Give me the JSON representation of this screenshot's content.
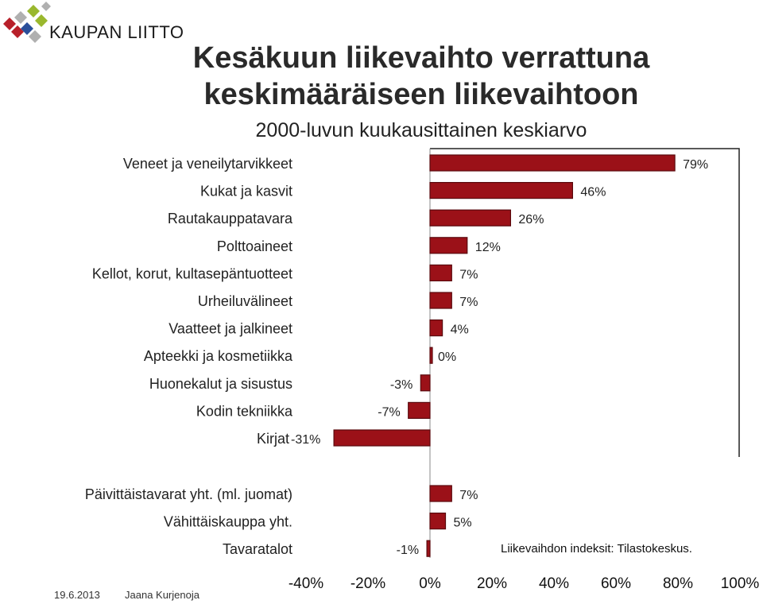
{
  "header": {
    "brand": "KAUPAN LIITTO",
    "title_line1": "Kesäkuun liikevaihto verrattuna",
    "title_line2": "keskimääräiseen liikevaihtoon",
    "subtitle": "2000-luvun kuukausittainen keskiarvo"
  },
  "footer": {
    "date": "19.6.2013",
    "author": "Jaana Kurjenoja",
    "source": "Liikevaihdon indeksit: Tilastokeskus."
  },
  "colors": {
    "bar_fill": "#9b1118",
    "bar_stroke": "#5a0a0e",
    "logo_red": "#b8202a",
    "logo_green": "#9ab82e",
    "logo_blue": "#2a4f9a",
    "logo_gray": "#b0b0b0"
  },
  "chart_data": {
    "type": "bar",
    "orientation": "horizontal",
    "grid": false,
    "xlim": [
      -40,
      100
    ],
    "x_ticks": [
      "-40%",
      "-20%",
      "0%",
      "20%",
      "40%",
      "60%",
      "80%",
      "100%"
    ],
    "groups": [
      {
        "categories": [
          "Veneet ja veneilytarvikkeet",
          "Kukat ja kasvit",
          "Rautakauppatavara",
          "Polttoaineet",
          "Kellot, korut, kultasepäntuotteet",
          "Urheiluvälineet",
          "Vaatteet ja jalkineet",
          "Apteekki ja kosmetiikka",
          "Huonekalut ja sisustus",
          "Kodin tekniikka",
          "Kirjat"
        ],
        "values": [
          79,
          46,
          26,
          12,
          7,
          7,
          4,
          0,
          -3,
          -7,
          -31
        ],
        "labels": [
          "79%",
          "46%",
          "26%",
          "12%",
          "7%",
          "7%",
          "4%",
          "0%",
          "-3%",
          "-7%",
          "-31%"
        ]
      },
      {
        "categories": [
          "Päivittäistavarat yht. (ml. juomat)",
          "Vähittäiskauppa yht.",
          "Tavaratalot"
        ],
        "values": [
          7,
          5,
          -1
        ],
        "labels": [
          "7%",
          "5%",
          "-1%"
        ]
      }
    ]
  }
}
